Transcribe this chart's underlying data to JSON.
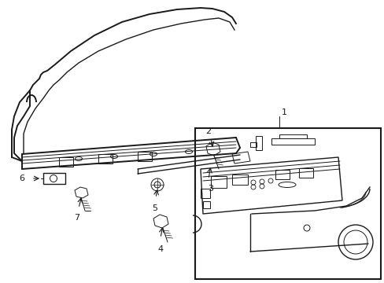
{
  "background_color": "#ffffff",
  "line_color": "#1a1a1a",
  "figsize": [
    4.89,
    3.6
  ],
  "dpi": 100,
  "label_fontsize": 8.0
}
